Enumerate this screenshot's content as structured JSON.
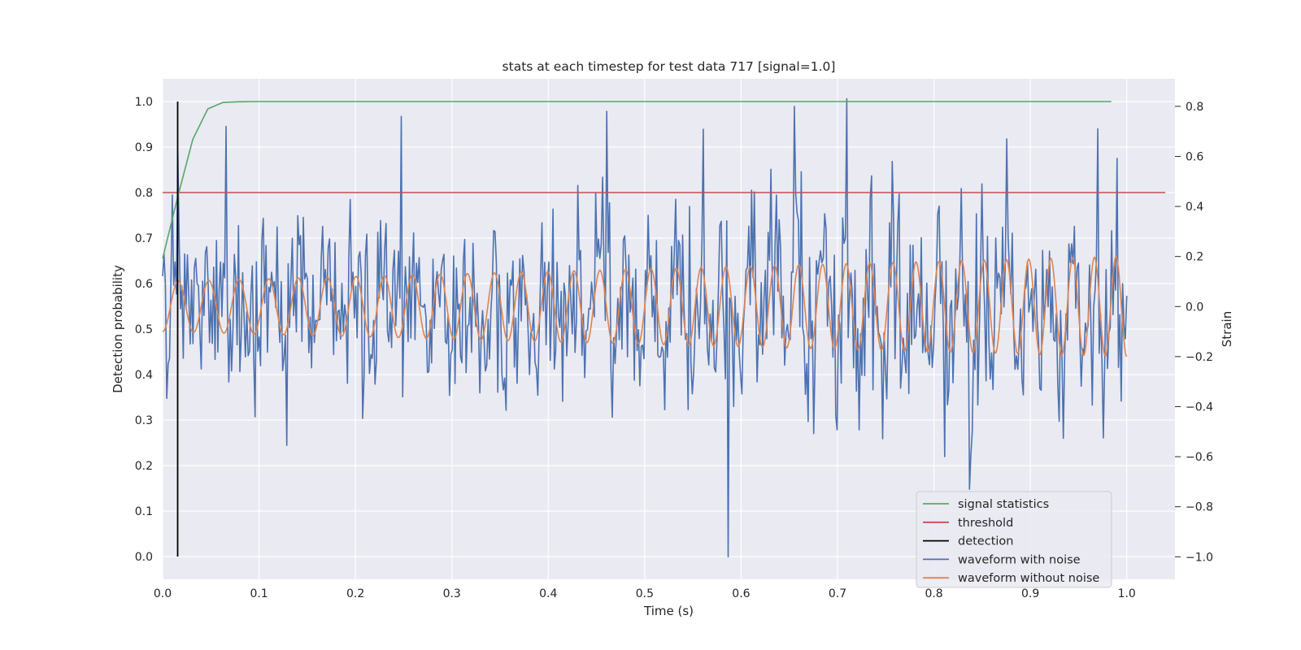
{
  "chart_data": {
    "type": "line",
    "title": "stats at each timestep for test data 717 [signal=1.0]",
    "xlabel": "Time (s)",
    "ylabel": "Detection probability",
    "y2label": "Strain",
    "xlim": [
      0.0,
      1.05
    ],
    "ylim": [
      -0.05,
      1.05
    ],
    "y2lim": [
      -1.09,
      0.91
    ],
    "xticks": [
      "0.0",
      "0.1",
      "0.2",
      "0.3",
      "0.4",
      "0.5",
      "0.6",
      "0.7",
      "0.8",
      "0.9",
      "1.0"
    ],
    "yticks": [
      "0.0",
      "0.1",
      "0.2",
      "0.3",
      "0.4",
      "0.5",
      "0.6",
      "0.7",
      "0.8",
      "0.9",
      "1.0"
    ],
    "y2ticks": [
      "−1.0",
      "−0.8",
      "−0.6",
      "−0.4",
      "−0.2",
      "0.0",
      "0.2",
      "0.4",
      "0.6",
      "0.8"
    ],
    "grid": true,
    "legend_position": "lower-right",
    "colors": {
      "signal_statistics": "#55a868",
      "threshold": "#c44e52",
      "detection": "#000000",
      "waveform_with_noise": "#4c72b0",
      "waveform_without_noise": "#dd8452",
      "plot_background": "#eaeaf2",
      "grid": "#ffffff"
    },
    "series": [
      {
        "name": "signal statistics",
        "axis": "left",
        "x": [
          0.0,
          0.0156,
          0.0313,
          0.0469,
          0.0625,
          0.0781,
          0.0938,
          0.125,
          0.25,
          0.5,
          0.75,
          0.984
        ],
        "y": [
          0.655,
          0.79,
          0.917,
          0.984,
          0.998,
          0.9995,
          1.0,
          1.0,
          1.0,
          1.0,
          1.0,
          1.0
        ]
      },
      {
        "name": "threshold",
        "axis": "left",
        "x": [
          0.0,
          1.04
        ],
        "y": [
          0.8,
          0.8
        ]
      },
      {
        "name": "detection",
        "axis": "left",
        "x": [
          0.0156,
          0.0156
        ],
        "y": [
          0.0,
          1.0
        ]
      },
      {
        "name": "waveform with noise",
        "axis": "right",
        "points": 700,
        "noise_std": 0.2,
        "x_range": [
          0.0,
          1.0
        ],
        "notable_points": [
          {
            "x": 0.066,
            "y": 0.72
          },
          {
            "x": 0.247,
            "y": 0.76
          },
          {
            "x": 0.46,
            "y": 0.78
          },
          {
            "x": 0.587,
            "y": -1.0
          },
          {
            "x": 0.655,
            "y": 0.8
          },
          {
            "x": 0.709,
            "y": 0.83
          },
          {
            "x": 0.837,
            "y": -0.73
          },
          {
            "x": 0.97,
            "y": 0.71
          }
        ]
      },
      {
        "name": "waveform without noise",
        "axis": "right",
        "x_range": [
          0.0,
          1.0
        ],
        "frequency_start_hz": 31,
        "frequency_end_hz": 45,
        "amplitude_start": 0.1,
        "amplitude_end": 0.2,
        "center": 0.0
      }
    ]
  }
}
